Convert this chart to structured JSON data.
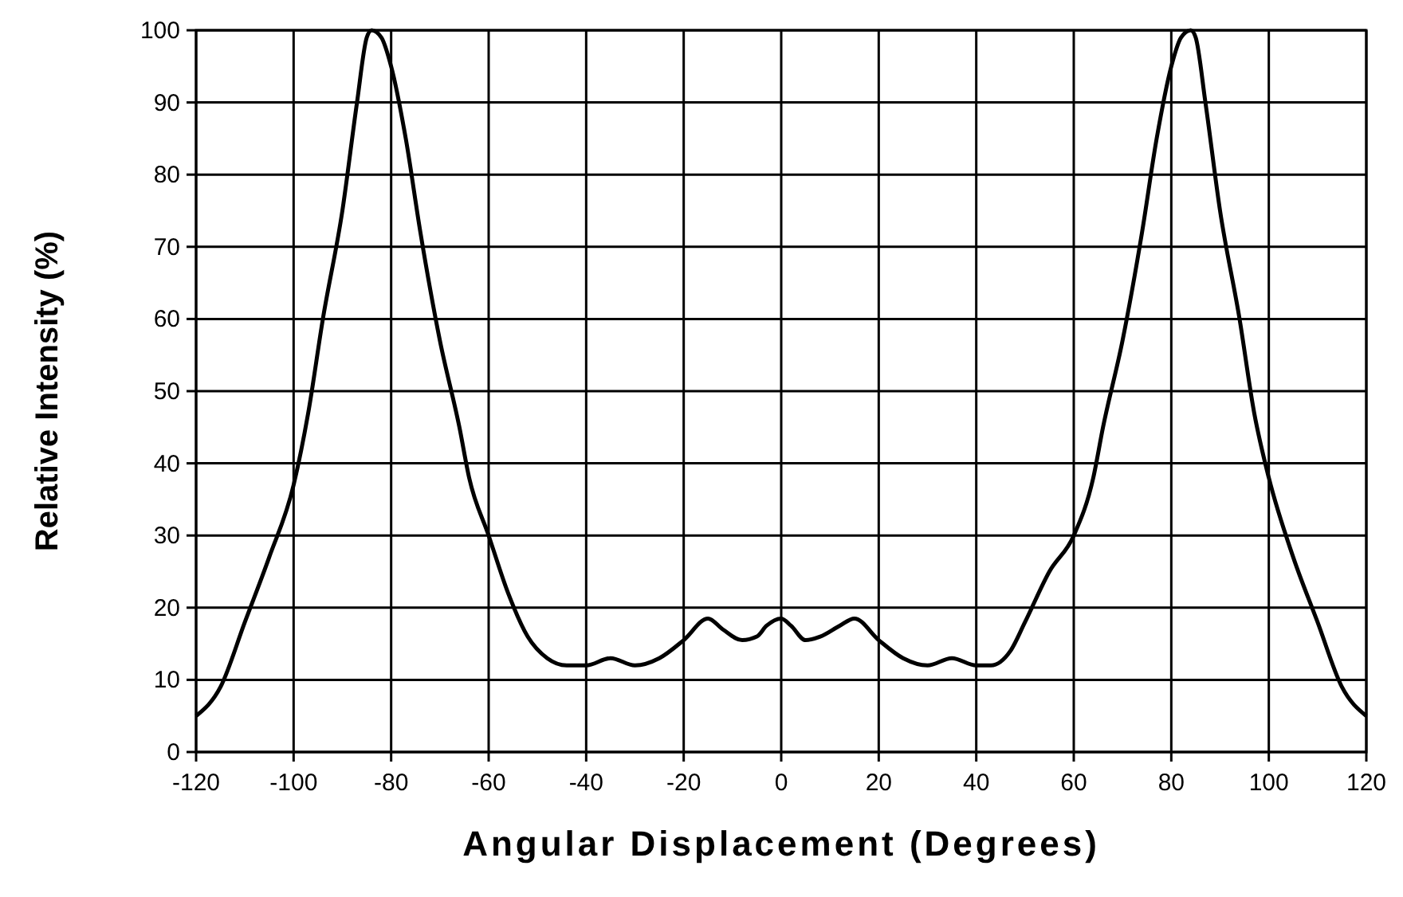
{
  "chart_data": {
    "type": "line",
    "xlabel": "Angular Displacement (Degrees)",
    "ylabel": "Relative Intensity (%)",
    "xlim": [
      -120,
      120
    ],
    "xticks": [
      -120,
      -100,
      -80,
      -60,
      -40,
      -20,
      0,
      20,
      40,
      60,
      80,
      100,
      120
    ],
    "ylim": [
      0,
      100
    ],
    "yticks": [
      0,
      10,
      20,
      30,
      40,
      50,
      60,
      70,
      80,
      90,
      100
    ],
    "grid": true,
    "marker": "none",
    "line_style": "solid",
    "series": [
      {
        "color": "#000000",
        "x": [
          -120,
          -115,
          -110,
          -105,
          -100,
          -97,
          -94,
          -90,
          -87,
          -85,
          -84,
          -82,
          -80,
          -77,
          -74,
          -70,
          -66,
          -64,
          -60,
          -56,
          -52,
          -48,
          -44,
          -40,
          -35,
          -30,
          -25,
          -20,
          -15,
          -12,
          -8,
          -5,
          -3,
          0,
          2,
          5,
          8,
          12,
          15,
          20,
          25,
          30,
          35,
          40,
          43,
          47,
          50,
          55,
          60,
          64,
          66,
          70,
          74,
          77,
          80,
          82,
          84,
          85,
          87,
          90,
          94,
          97,
          100,
          105,
          110,
          115,
          120
        ],
        "values": [
          5,
          9,
          18,
          27,
          37,
          47,
          60,
          75,
          90,
          99,
          100,
          99,
          95,
          85,
          72,
          57,
          45,
          38,
          30,
          22,
          16,
          13,
          12,
          12,
          13,
          12,
          13,
          15.5,
          18.5,
          17,
          15.5,
          16,
          17.5,
          18.5,
          17.5,
          15.5,
          16,
          17.5,
          18.5,
          15.5,
          13,
          12,
          13,
          12,
          12,
          14,
          18,
          25,
          30,
          38,
          45,
          57,
          72,
          85,
          95,
          99,
          100,
          99,
          90,
          75,
          60,
          47,
          38,
          27,
          18,
          9,
          5
        ]
      }
    ]
  }
}
